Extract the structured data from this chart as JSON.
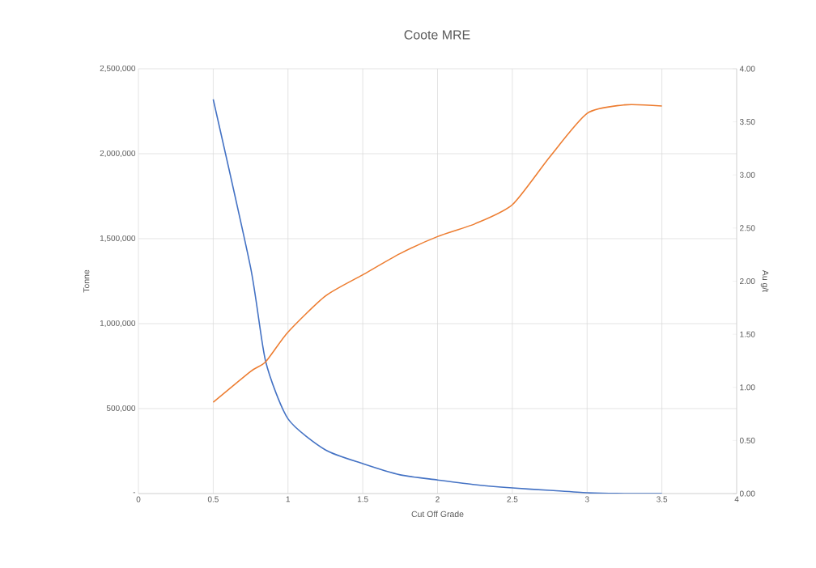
{
  "chart_data": {
    "type": "line",
    "title": "Coote MRE",
    "xlabel": "Cut Off Grade",
    "ylabel": "Tonne",
    "y2label": "Au g/t",
    "x": [
      0.5,
      0.75,
      0.85,
      1,
      1.25,
      1.5,
      1.75,
      2,
      2.25,
      2.5,
      2.75,
      3,
      3.25,
      3.5
    ],
    "series": [
      {
        "color": "#4472c4",
        "values": [
          2320000,
          1330000,
          780000,
          440000,
          257000,
          176000,
          110000,
          80000,
          52000,
          33000,
          19000,
          5000,
          0,
          0
        ]
      },
      {
        "color": "#ed7d31",
        "axis": "y2",
        "values": [
          0.86,
          1.15,
          1.24,
          1.52,
          1.86,
          2.06,
          2.26,
          2.42,
          2.54,
          2.72,
          3.17,
          3.58,
          3.66,
          3.65
        ]
      }
    ],
    "xlim": [
      0,
      4
    ],
    "xticks": [
      0,
      0.5,
      1,
      1.5,
      2,
      2.5,
      3,
      3.5,
      4
    ],
    "ylim": [
      0,
      2500000
    ],
    "yticks": [
      {
        "value": 0,
        "label": "-"
      },
      {
        "value": 500000,
        "label": "500,000"
      },
      {
        "value": 1000000,
        "label": "1,000,000"
      },
      {
        "value": 1500000,
        "label": "1,500,000"
      },
      {
        "value": 2000000,
        "label": "2,000,000"
      },
      {
        "value": 2500000,
        "label": "2,500,000"
      }
    ],
    "y2lim": [
      0,
      4
    ],
    "y2ticks": [
      {
        "value": 0,
        "label": "0.00"
      },
      {
        "value": 0.5,
        "label": "0.50"
      },
      {
        "value": 1,
        "label": "1.00"
      },
      {
        "value": 1.5,
        "label": "1.50"
      },
      {
        "value": 2,
        "label": "2.00"
      },
      {
        "value": 2.5,
        "label": "2.50"
      },
      {
        "value": 3,
        "label": "3.00"
      },
      {
        "value": 3.5,
        "label": "3.50"
      },
      {
        "value": 4,
        "label": "4.00"
      }
    ],
    "grid": true,
    "marker": "none",
    "line_style": "solid"
  }
}
